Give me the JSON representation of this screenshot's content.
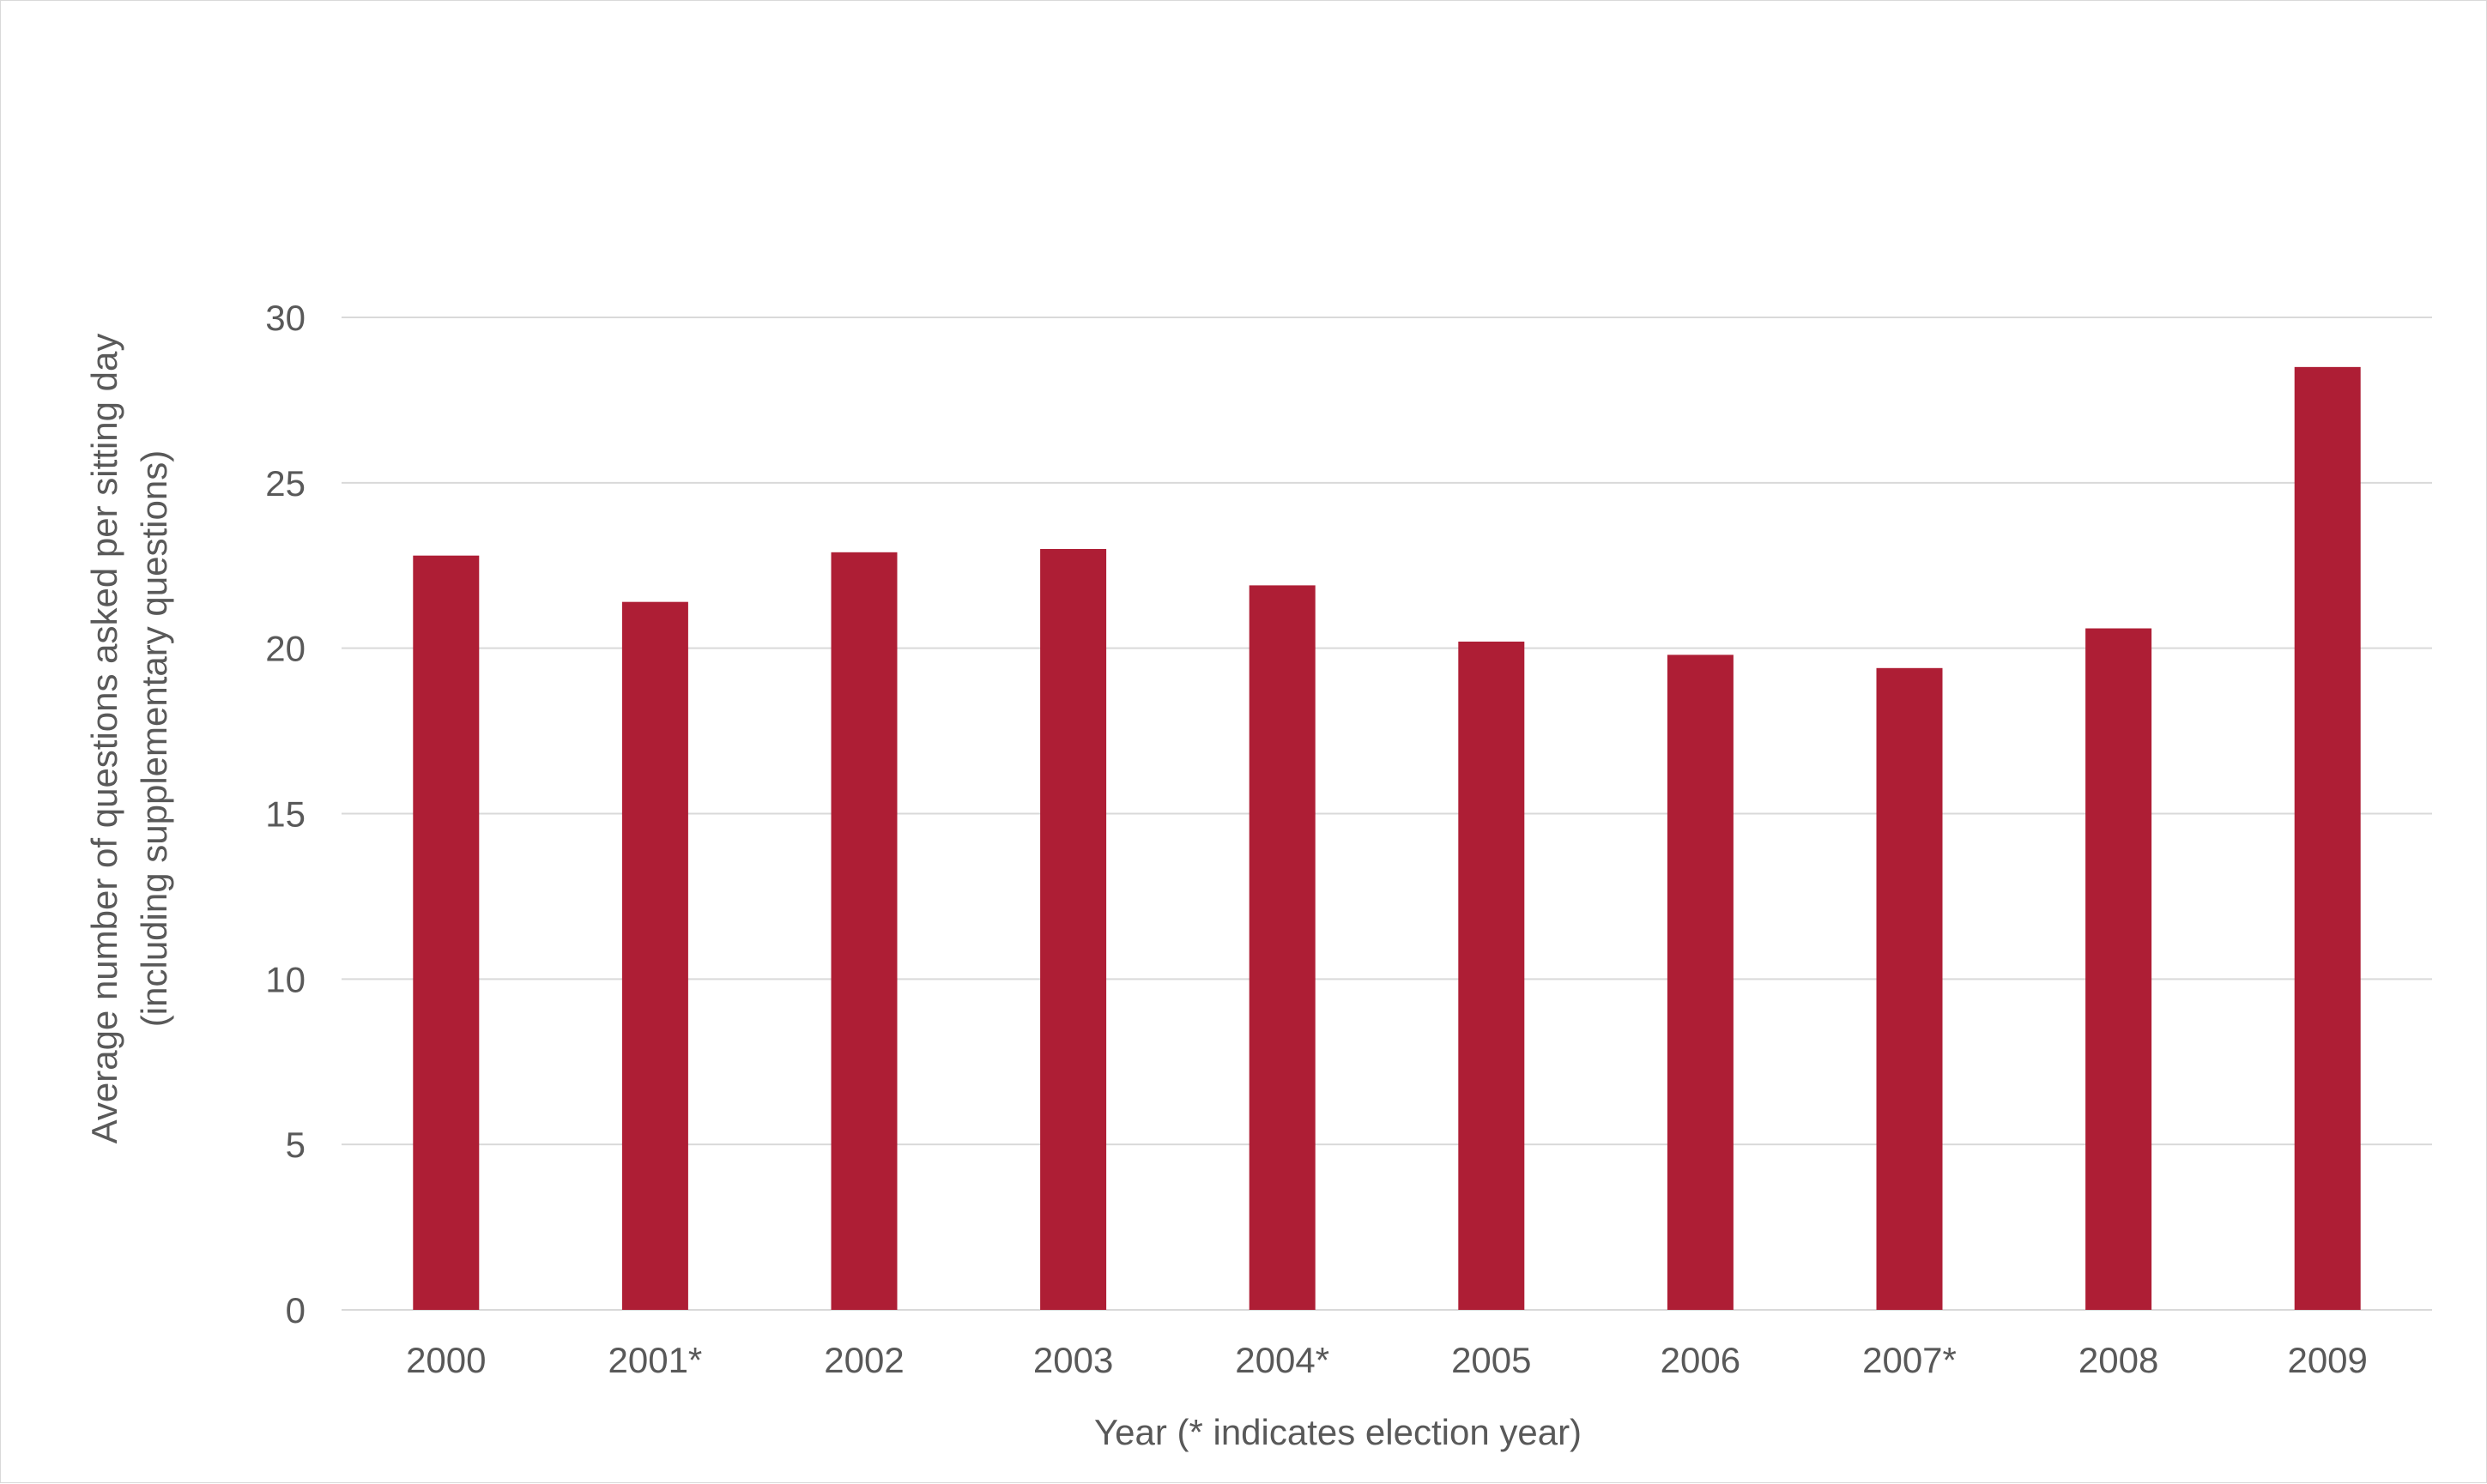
{
  "colors": {
    "bar": "#ae1e35",
    "grid": "#d9d9d9",
    "text": "#595959",
    "background": "#ffffff"
  },
  "chart_data": {
    "type": "bar",
    "title": "",
    "xlabel": "Year (* indicates election year)",
    "ylabel_lines": [
      "Average number of questions asked per sitting day",
      "(including supplementary questions)"
    ],
    "categories": [
      "2000",
      "2001*",
      "2002",
      "2003",
      "2004*",
      "2005",
      "2006",
      "2007*",
      "2008",
      "2009"
    ],
    "values": [
      22.8,
      21.4,
      22.9,
      23.0,
      21.9,
      20.2,
      19.8,
      19.4,
      20.6,
      28.5
    ],
    "ylim": [
      0,
      30
    ],
    "yticks": [
      0,
      5,
      10,
      15,
      20,
      25,
      30
    ],
    "grid": true,
    "legend": "none"
  }
}
